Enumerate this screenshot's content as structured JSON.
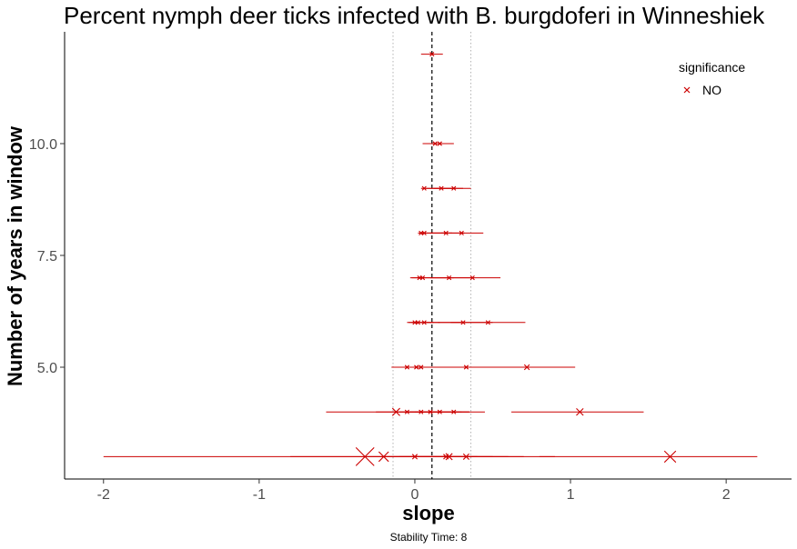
{
  "chart_data": {
    "type": "scatter",
    "title": "Percent nymph deer ticks infected with B. burgdoferi in Winneshiek",
    "xlabel": "slope",
    "ylabel": "Number of years in window",
    "caption": "Stability Time: 8",
    "xlim": [
      -2.25,
      2.42
    ],
    "ylim": [
      2.5,
      12.5
    ],
    "x_ticks": [
      -2,
      -1,
      0,
      1,
      2
    ],
    "x_tick_labels": [
      "-2",
      "-1",
      "0",
      "1",
      "2"
    ],
    "y_ticks": [
      5.0,
      7.5,
      10.0
    ],
    "y_tick_labels": [
      "5.0",
      "7.5",
      "10.0"
    ],
    "grid": false,
    "reference_lines": {
      "mean_slope": 0.11,
      "dotted_bounds": [
        -0.14,
        0.36
      ]
    },
    "legend": {
      "title": "significance",
      "entries": [
        "NO"
      ],
      "position": "top-right"
    },
    "color": "#cc0000",
    "rows": [
      {
        "years": 12,
        "estimates": [
          {
            "slope": 0.11,
            "ci": [
              0.04,
              0.18
            ]
          }
        ]
      },
      {
        "years": 10,
        "estimates": [
          {
            "slope": 0.13,
            "ci": [
              0.05,
              0.25
            ]
          },
          {
            "slope": 0.16,
            "ci": [
              0.08,
              0.25
            ]
          }
        ]
      },
      {
        "years": 9,
        "estimates": [
          {
            "slope": 0.06,
            "ci": [
              0.04,
              0.26
            ]
          },
          {
            "slope": 0.17,
            "ci": [
              0.07,
              0.31
            ]
          },
          {
            "slope": 0.25,
            "ci": [
              0.12,
              0.36
            ]
          }
        ]
      },
      {
        "years": 8,
        "estimates": [
          {
            "slope": 0.04,
            "ci": [
              0.02,
              0.2
            ]
          },
          {
            "slope": 0.06,
            "ci": [
              0.03,
              0.24
            ]
          },
          {
            "slope": 0.2,
            "ci": [
              0.1,
              0.32
            ]
          },
          {
            "slope": 0.3,
            "ci": [
              0.17,
              0.44
            ]
          }
        ]
      },
      {
        "years": 7,
        "estimates": [
          {
            "slope": 0.03,
            "ci": [
              -0.02,
              0.2
            ]
          },
          {
            "slope": 0.05,
            "ci": [
              -0.03,
              0.25
            ]
          },
          {
            "slope": 0.22,
            "ci": [
              0.1,
              0.36
            ]
          },
          {
            "slope": 0.37,
            "ci": [
              0.2,
              0.55
            ]
          }
        ]
      },
      {
        "years": 6,
        "estimates": [
          {
            "slope": 0.0,
            "ci": [
              -0.05,
              0.12
            ]
          },
          {
            "slope": 0.02,
            "ci": [
              -0.04,
              0.16
            ]
          },
          {
            "slope": 0.06,
            "ci": [
              -0.02,
              0.3
            ]
          },
          {
            "slope": 0.31,
            "ci": [
              0.15,
              0.5
            ]
          },
          {
            "slope": 0.47,
            "ci": [
              0.23,
              0.71
            ]
          }
        ]
      },
      {
        "years": 5,
        "estimates": [
          {
            "slope": -0.05,
            "ci": [
              -0.15,
              0.05
            ]
          },
          {
            "slope": 0.01,
            "ci": [
              -0.12,
              0.16
            ]
          },
          {
            "slope": 0.04,
            "ci": [
              -0.1,
              0.22
            ]
          },
          {
            "slope": 0.33,
            "ci": [
              0.1,
              0.55
            ]
          },
          {
            "slope": 0.72,
            "ci": [
              0.4,
              1.03
            ]
          }
        ]
      },
      {
        "years": 4,
        "estimates": [
          {
            "slope": -0.12,
            "ci": [
              -0.57,
              0.35
            ]
          },
          {
            "slope": -0.05,
            "ci": [
              -0.25,
              0.15
            ]
          },
          {
            "slope": 0.04,
            "ci": [
              -0.1,
              0.18
            ]
          },
          {
            "slope": 0.1,
            "ci": [
              -0.05,
              0.3
            ]
          },
          {
            "slope": 0.16,
            "ci": [
              0.0,
              0.35
            ]
          },
          {
            "slope": 0.25,
            "ci": [
              0.05,
              0.45
            ]
          },
          {
            "slope": 1.06,
            "ci": [
              0.62,
              1.47
            ]
          }
        ]
      },
      {
        "years": 3,
        "estimates": [
          {
            "slope": -0.32,
            "ci": [
              -2.0,
              0.9
            ]
          },
          {
            "slope": -0.2,
            "ci": [
              -0.8,
              0.4
            ]
          },
          {
            "slope": 0.0,
            "ci": [
              -0.3,
              0.3
            ]
          },
          {
            "slope": 0.2,
            "ci": [
              -0.1,
              0.5
            ]
          },
          {
            "slope": 0.22,
            "ci": [
              -0.2,
              0.6
            ]
          },
          {
            "slope": 0.33,
            "ci": [
              0.0,
              0.7
            ]
          },
          {
            "slope": 1.64,
            "ci": [
              0.8,
              2.2
            ]
          }
        ]
      }
    ]
  }
}
